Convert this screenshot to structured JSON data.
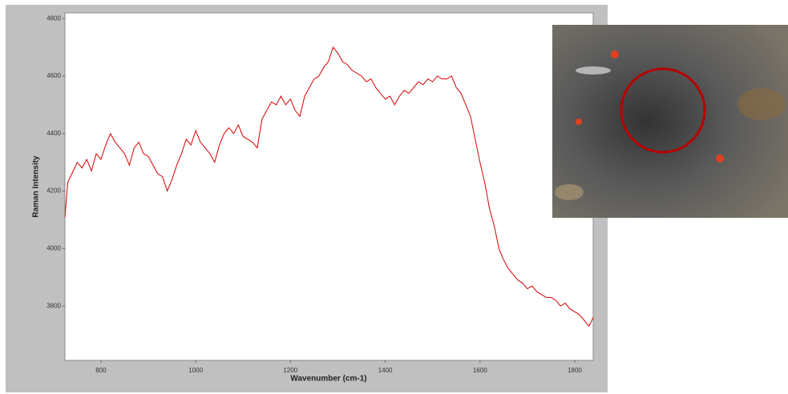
{
  "chart_data": {
    "type": "line",
    "x_label": "Wavenumber (cm-1)",
    "y_label": "Raman Intensity",
    "x": [
      724,
      730,
      740,
      750,
      760,
      770,
      780,
      790,
      800,
      810,
      820,
      830,
      840,
      850,
      860,
      870,
      880,
      890,
      900,
      910,
      920,
      930,
      940,
      950,
      960,
      970,
      980,
      990,
      1000,
      1010,
      1020,
      1030,
      1040,
      1050,
      1060,
      1070,
      1080,
      1090,
      1100,
      1110,
      1120,
      1130,
      1140,
      1150,
      1160,
      1170,
      1180,
      1190,
      1200,
      1210,
      1220,
      1230,
      1240,
      1250,
      1260,
      1270,
      1280,
      1290,
      1300,
      1310,
      1320,
      1330,
      1340,
      1350,
      1360,
      1370,
      1380,
      1390,
      1400,
      1410,
      1420,
      1430,
      1440,
      1450,
      1460,
      1470,
      1480,
      1490,
      1500,
      1510,
      1520,
      1530,
      1540,
      1550,
      1560,
      1570,
      1580,
      1590,
      1600,
      1610,
      1620,
      1630,
      1640,
      1650,
      1660,
      1670,
      1680,
      1690,
      1700,
      1710,
      1720,
      1730,
      1740,
      1750,
      1760,
      1770,
      1780,
      1790,
      1800,
      1810,
      1820,
      1830,
      1839
    ],
    "series": [
      {
        "color": "#d40000",
        "values": [
          4110,
          4230,
          4265,
          4300,
          4280,
          4310,
          4270,
          4330,
          4310,
          4360,
          4400,
          4370,
          4350,
          4330,
          4290,
          4350,
          4370,
          4330,
          4320,
          4290,
          4260,
          4250,
          4200,
          4240,
          4290,
          4330,
          4380,
          4360,
          4410,
          4370,
          4350,
          4330,
          4300,
          4360,
          4400,
          4420,
          4400,
          4430,
          4390,
          4380,
          4370,
          4350,
          4450,
          4480,
          4510,
          4500,
          4530,
          4500,
          4520,
          4480,
          4460,
          4530,
          4560,
          4590,
          4600,
          4630,
          4650,
          4700,
          4680,
          4650,
          4640,
          4620,
          4610,
          4600,
          4580,
          4590,
          4560,
          4540,
          4520,
          4530,
          4500,
          4530,
          4550,
          4540,
          4560,
          4580,
          4570,
          4590,
          4580,
          4600,
          4590,
          4590,
          4600,
          4560,
          4540,
          4500,
          4460,
          4380,
          4300,
          4230,
          4140,
          4080,
          4000,
          3960,
          3930,
          3910,
          3890,
          3880,
          3860,
          3870,
          3850,
          3840,
          3830,
          3830,
          3820,
          3800,
          3810,
          3790,
          3780,
          3770,
          3750,
          3730,
          3760
        ]
      }
    ],
    "xlim": [
      724,
      1839
    ],
    "xticks": [
      800,
      1000,
      1200,
      1400,
      1600,
      1800
    ],
    "ylim": [
      3611,
      4820
    ],
    "yticks": [
      3800,
      4000,
      4200,
      4400,
      4600,
      4800
    ]
  }
}
